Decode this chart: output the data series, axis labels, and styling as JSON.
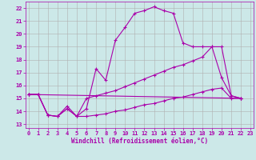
{
  "xlabel": "Windchill (Refroidissement éolien,°C)",
  "bg_color": "#cce8e8",
  "line_color": "#aa00aa",
  "grid_color": "#b0b0b0",
  "xlim": [
    -0.3,
    23.3
  ],
  "ylim": [
    12.7,
    22.5
  ],
  "yticks": [
    13,
    14,
    15,
    16,
    17,
    18,
    19,
    20,
    21,
    22
  ],
  "xticks": [
    0,
    1,
    2,
    3,
    4,
    5,
    6,
    7,
    8,
    9,
    10,
    11,
    12,
    13,
    14,
    15,
    16,
    17,
    18,
    19,
    20,
    21,
    22,
    23
  ],
  "series1_x": [
    0,
    1,
    2,
    3,
    4,
    5,
    6,
    7,
    8,
    9,
    10,
    11,
    12,
    13,
    14,
    15,
    16,
    17,
    18,
    19,
    20,
    21,
    22
  ],
  "series1_y": [
    15.3,
    15.3,
    13.7,
    13.6,
    14.4,
    13.6,
    14.2,
    17.3,
    16.4,
    19.5,
    20.5,
    21.6,
    21.8,
    22.1,
    21.8,
    21.6,
    19.3,
    19.0,
    19.0,
    19.0,
    16.6,
    15.2,
    15.0
  ],
  "series2_x": [
    0,
    1,
    2,
    3,
    4,
    5,
    6,
    7,
    8,
    9,
    10,
    11,
    12,
    13,
    14,
    15,
    16,
    17,
    18,
    19,
    20,
    21,
    22
  ],
  "series2_y": [
    15.3,
    15.3,
    13.7,
    13.6,
    14.2,
    13.6,
    15.0,
    15.2,
    15.4,
    15.6,
    15.9,
    16.2,
    16.5,
    16.8,
    17.1,
    17.4,
    17.6,
    17.9,
    18.2,
    19.0,
    19.0,
    15.2,
    15.0
  ],
  "series3_x": [
    0,
    22
  ],
  "series3_y": [
    15.3,
    15.0
  ],
  "series4_x": [
    0,
    1,
    2,
    3,
    4,
    5,
    6,
    7,
    8,
    9,
    10,
    11,
    12,
    13,
    14,
    15,
    16,
    17,
    18,
    19,
    20,
    21,
    22
  ],
  "series4_y": [
    15.3,
    15.3,
    13.7,
    13.6,
    14.2,
    13.6,
    13.6,
    13.7,
    13.8,
    14.0,
    14.1,
    14.3,
    14.5,
    14.6,
    14.8,
    15.0,
    15.1,
    15.3,
    15.5,
    15.7,
    15.8,
    15.0,
    15.0
  ]
}
